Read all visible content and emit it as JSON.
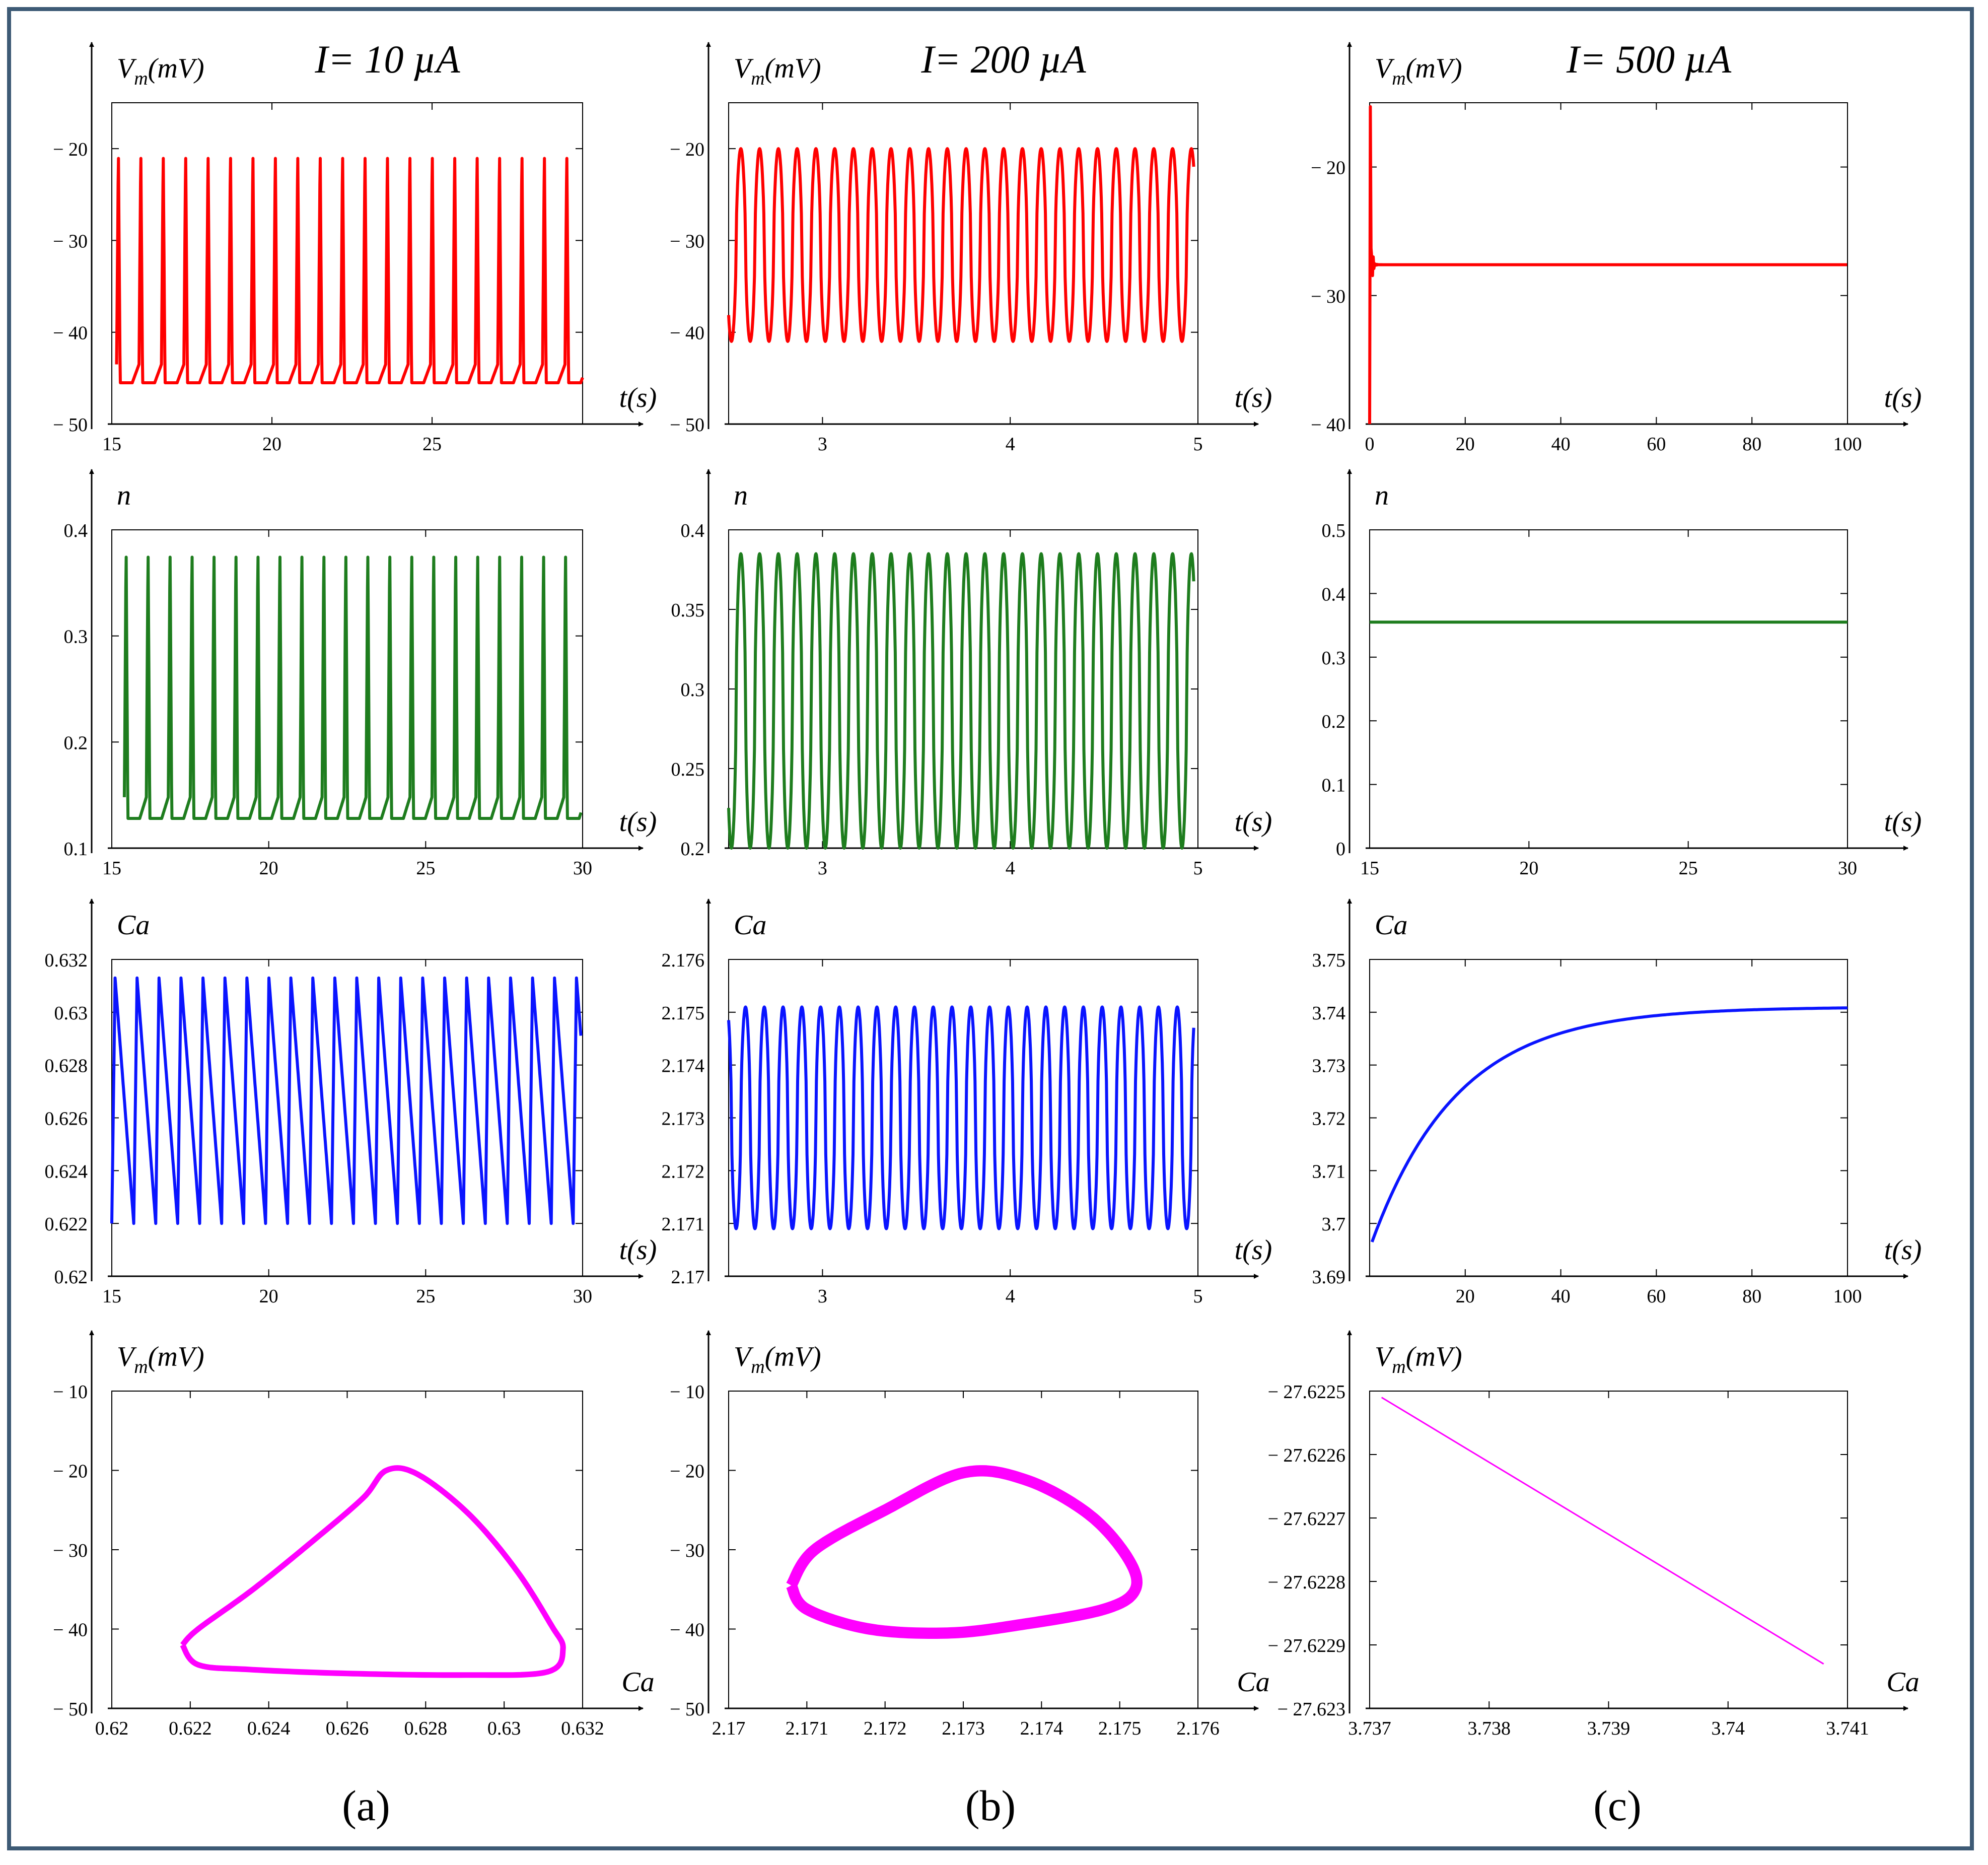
{
  "figure": {
    "column_labels": [
      "(a)",
      "(b)",
      "(c)"
    ],
    "current_labels": [
      "I= 10 µA",
      "I= 200 µA",
      "I= 500 µA"
    ]
  },
  "colors": {
    "vm": "#ff0000",
    "n": "#1e7d1e",
    "ca": "#0a14ff",
    "phase": "#ff00ff",
    "frame": "#3d5a75",
    "axis": "#000000"
  },
  "chart_data": [
    {
      "id": "a-vm",
      "col": 0,
      "row": 0,
      "type": "line",
      "series": "vm",
      "title": "I= 10 µA",
      "ylabel_main": "V",
      "ylabel_sub": "m",
      "ylabel_unit": "(mV)",
      "xlabel": "t(s)",
      "xlim": [
        15,
        29.7
      ],
      "ylim": [
        -50,
        -15
      ],
      "xticks": [
        15,
        20,
        25
      ],
      "xtick_labels": [
        "15",
        "20",
        "25"
      ],
      "yticks": [
        -50,
        -40,
        -30,
        -20
      ],
      "ytick_labels": [
        "− 50",
        "− 40",
        "− 30",
        "− 20"
      ],
      "signal": {
        "kind": "spikes",
        "x0": 15.15,
        "x1": 29.7,
        "period": 0.7,
        "base": -45.5,
        "peak": -20,
        "pre": -43.5
      }
    },
    {
      "id": "a-n",
      "col": 0,
      "row": 1,
      "type": "line",
      "series": "n",
      "ylabel_main": "n",
      "xlabel": "t(s)",
      "xlim": [
        15,
        30
      ],
      "ylim": [
        0.1,
        0.4
      ],
      "xticks": [
        15,
        20,
        25,
        30
      ],
      "xtick_labels": [
        "15",
        "20",
        "25",
        "30"
      ],
      "yticks": [
        0.1,
        0.2,
        0.3,
        0.4
      ],
      "ytick_labels": [
        "0.1",
        "0.2",
        "0.3",
        "0.4"
      ],
      "signal": {
        "kind": "spikes",
        "x0": 15.4,
        "x1": 29.95,
        "period": 0.7,
        "base": 0.128,
        "peak": 0.385,
        "pre": 0.148
      }
    },
    {
      "id": "a-ca",
      "col": 0,
      "row": 2,
      "type": "line",
      "series": "ca",
      "ylabel_main": "Ca",
      "xlabel": "t(s)",
      "xlim": [
        15,
        30
      ],
      "ylim": [
        0.62,
        0.632
      ],
      "xticks": [
        15,
        20,
        25,
        30
      ],
      "xtick_labels": [
        "15",
        "20",
        "25",
        "30"
      ],
      "yticks": [
        0.62,
        0.622,
        0.624,
        0.626,
        0.628,
        0.63,
        0.632
      ],
      "ytick_labels": [
        "0.62",
        "0.622",
        "0.624",
        "0.626",
        "0.628",
        "0.63",
        "0.632"
      ],
      "signal": {
        "kind": "saw",
        "x0": 15.0,
        "x1": 29.95,
        "period": 0.7,
        "lo": 0.622,
        "hi": 0.6313
      }
    },
    {
      "id": "a-phase",
      "col": 0,
      "row": 3,
      "type": "line",
      "series": "phase",
      "ylabel_main": "V",
      "ylabel_sub": "m",
      "ylabel_unit": "(mV)",
      "xlabel": "Ca",
      "xlim": [
        0.62,
        0.632
      ],
      "ylim": [
        -50,
        -10
      ],
      "xticks": [
        0.62,
        0.622,
        0.624,
        0.626,
        0.628,
        0.63,
        0.632
      ],
      "xtick_labels": [
        "0.62",
        "0.622",
        "0.624",
        "0.626",
        "0.628",
        "0.63",
        "0.632"
      ],
      "yticks": [
        -50,
        -40,
        -30,
        -20,
        -10
      ],
      "ytick_labels": [
        "− 50",
        "− 40",
        "− 30",
        "− 20",
        "− 10"
      ],
      "signal": {
        "kind": "loop",
        "points": [
          [
            0.6218,
            -42
          ],
          [
            0.6222,
            -40
          ],
          [
            0.6236,
            -35
          ],
          [
            0.6251,
            -29
          ],
          [
            0.6264,
            -23.5
          ],
          [
            0.627,
            -20
          ],
          [
            0.6278,
            -20.5
          ],
          [
            0.6291,
            -25.5
          ],
          [
            0.6303,
            -32.5
          ],
          [
            0.6312,
            -39.5
          ],
          [
            0.6315,
            -42.5
          ],
          [
            0.6311,
            -45.4
          ],
          [
            0.629,
            -45.8
          ],
          [
            0.626,
            -45.6
          ],
          [
            0.6235,
            -45.1
          ],
          [
            0.6222,
            -44.5
          ],
          [
            0.6218,
            -42
          ]
        ],
        "thick": 1.6
      }
    },
    {
      "id": "b-vm",
      "col": 1,
      "row": 0,
      "type": "line",
      "series": "vm",
      "title": "I= 200 µA",
      "ylabel_main": "V",
      "ylabel_sub": "m",
      "ylabel_unit": "(mV)",
      "xlabel": "t(s)",
      "xlim": [
        2.5,
        5
      ],
      "ylim": [
        -50,
        -15
      ],
      "xticks": [
        3,
        4,
        5
      ],
      "xtick_labels": [
        "3",
        "4",
        "5"
      ],
      "yticks": [
        -50,
        -40,
        -30,
        -20
      ],
      "ytick_labels": [
        "− 50",
        "− 40",
        "− 30",
        "− 20"
      ],
      "signal": {
        "kind": "osc",
        "x0": 2.5,
        "x1": 4.98,
        "period": 0.1,
        "lo": -41,
        "hi": -20,
        "phase": 0.35
      }
    },
    {
      "id": "b-n",
      "col": 1,
      "row": 1,
      "type": "line",
      "series": "n",
      "ylabel_main": "n",
      "xlabel": "t(s)",
      "xlim": [
        2.5,
        5
      ],
      "ylim": [
        0.2,
        0.4
      ],
      "xticks": [
        3,
        4,
        5
      ],
      "xtick_labels": [
        "3",
        "4",
        "5"
      ],
      "yticks": [
        0.2,
        0.25,
        0.3,
        0.35,
        0.4
      ],
      "ytick_labels": [
        "0.2",
        "0.25",
        "0.3",
        "0.35",
        "0.4"
      ],
      "signal": {
        "kind": "osc",
        "x0": 2.5,
        "x1": 4.98,
        "period": 0.1,
        "lo": 0.2,
        "hi": 0.385,
        "phase": 0.35
      }
    },
    {
      "id": "b-ca",
      "col": 1,
      "row": 2,
      "type": "line",
      "series": "ca",
      "ylabel_main": "Ca",
      "xlabel": "t(s)",
      "xlim": [
        2.5,
        5
      ],
      "ylim": [
        2.17,
        2.176
      ],
      "xticks": [
        3,
        4,
        5
      ],
      "xtick_labels": [
        "3",
        "4",
        "5"
      ],
      "yticks": [
        2.17,
        2.171,
        2.172,
        2.173,
        2.174,
        2.175,
        2.176
      ],
      "ytick_labels": [
        "2.17",
        "2.171",
        "2.172",
        "2.173",
        "2.174",
        "2.175",
        "2.176"
      ],
      "signal": {
        "kind": "osc",
        "x0": 2.5,
        "x1": 4.98,
        "period": 0.1,
        "lo": 2.1709,
        "hi": 2.1751,
        "phase": 0.1
      }
    },
    {
      "id": "b-phase",
      "col": 1,
      "row": 3,
      "type": "line",
      "series": "phase",
      "ylabel_main": "V",
      "ylabel_sub": "m",
      "ylabel_unit": "(mV)",
      "xlabel": "Ca",
      "xlim": [
        2.17,
        2.176
      ],
      "ylim": [
        -50,
        -10
      ],
      "xticks": [
        2.17,
        2.171,
        2.172,
        2.173,
        2.174,
        2.175,
        2.176
      ],
      "xtick_labels": [
        "2.17",
        "2.171",
        "2.172",
        "2.173",
        "2.174",
        "2.175",
        "2.176"
      ],
      "yticks": [
        -50,
        -40,
        -30,
        -20,
        -10
      ],
      "ytick_labels": [
        "− 50",
        "− 40",
        "− 30",
        "− 20",
        "− 10"
      ],
      "signal": {
        "kind": "loop",
        "points": [
          [
            2.1708,
            -34.5
          ],
          [
            2.1711,
            -30
          ],
          [
            2.172,
            -25
          ],
          [
            2.173,
            -20.3
          ],
          [
            2.1738,
            -21.2
          ],
          [
            2.1746,
            -25.5
          ],
          [
            2.1751,
            -31
          ],
          [
            2.1752,
            -35
          ],
          [
            2.1748,
            -37.5
          ],
          [
            2.1737,
            -39.5
          ],
          [
            2.1728,
            -40.5
          ],
          [
            2.1718,
            -40
          ],
          [
            2.171,
            -37.5
          ],
          [
            2.1708,
            -34.5
          ]
        ],
        "thick": 3.2
      }
    },
    {
      "id": "c-vm",
      "col": 2,
      "row": 0,
      "type": "line",
      "series": "vm",
      "title": "I= 500 µA",
      "ylabel_main": "V",
      "ylabel_sub": "m",
      "ylabel_unit": "(mV)",
      "xlabel": "t(s)",
      "xlim": [
        0,
        100
      ],
      "ylim": [
        -40,
        -15
      ],
      "xticks": [
        0,
        20,
        40,
        60,
        80,
        100
      ],
      "xtick_labels": [
        "0",
        "20",
        "40",
        "60",
        "80",
        "100"
      ],
      "yticks": [
        -40,
        -30,
        -20
      ],
      "ytick_labels": [
        "− 40",
        "− 30",
        "− 20"
      ],
      "signal": {
        "kind": "settle",
        "x0": 0,
        "x1": 100,
        "final": -27.6,
        "start": -15.3
      }
    },
    {
      "id": "c-n",
      "col": 2,
      "row": 1,
      "type": "line",
      "series": "n",
      "ylabel_main": "n",
      "xlabel": "t(s)",
      "xlim": [
        15,
        30
      ],
      "ylim": [
        0,
        0.5
      ],
      "xticks": [
        15,
        20,
        25,
        30
      ],
      "xtick_labels": [
        "15",
        "20",
        "25",
        "30"
      ],
      "yticks": [
        0,
        0.1,
        0.2,
        0.3,
        0.4,
        0.5
      ],
      "ytick_labels": [
        "0",
        "0.1",
        "0.2",
        "0.3",
        "0.4",
        "0.5"
      ],
      "signal": {
        "kind": "const",
        "x0": 15,
        "x1": 30,
        "value": 0.355
      }
    },
    {
      "id": "c-ca",
      "col": 2,
      "row": 2,
      "type": "line",
      "series": "ca",
      "ylabel_main": "Ca",
      "xlabel": "t(s)",
      "xlim": [
        0,
        100
      ],
      "ylim": [
        3.69,
        3.75
      ],
      "xticks": [
        20,
        40,
        60,
        80,
        100
      ],
      "xtick_labels": [
        "20",
        "40",
        "60",
        "80",
        "100"
      ],
      "yticks": [
        3.69,
        3.7,
        3.71,
        3.72,
        3.73,
        3.74,
        3.75
      ],
      "ytick_labels": [
        "3.69",
        "3.7",
        "3.71",
        "3.72",
        "3.73",
        "3.74",
        "3.75"
      ],
      "signal": {
        "kind": "exp",
        "x0": 0.5,
        "x1": 100,
        "start": 3.6965,
        "final": 3.741,
        "tau": 18
      }
    },
    {
      "id": "c-phase",
      "col": 2,
      "row": 3,
      "type": "line",
      "series": "phase",
      "ylabel_main": "V",
      "ylabel_sub": "m",
      "ylabel_unit": "(mV)",
      "xlabel": "Ca",
      "xlim": [
        3.737,
        3.741
      ],
      "ylim": [
        -27.623,
        -27.6225
      ],
      "xticks": [
        3.737,
        3.738,
        3.739,
        3.74,
        3.741
      ],
      "xtick_labels": [
        "3.737",
        "3.738",
        "3.739",
        "3.74",
        "3.741"
      ],
      "yticks": [
        -27.623,
        -27.6229,
        -27.6228,
        -27.6227,
        -27.6226,
        -27.6225
      ],
      "ytick_labels": [
        "− 27.623",
        "− 27.6229",
        "− 27.6228",
        "− 27.6227",
        "− 27.6226",
        "− 27.6225"
      ],
      "signal": {
        "kind": "linepts",
        "points": [
          [
            3.7371,
            -27.62251
          ],
          [
            3.7408,
            -27.62293
          ]
        ],
        "thick": 1
      }
    }
  ]
}
